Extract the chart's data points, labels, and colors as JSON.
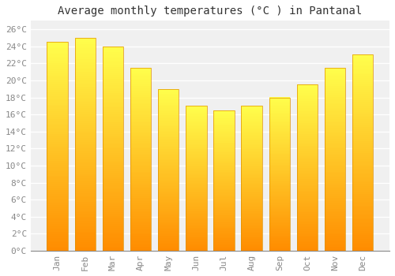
{
  "months": [
    "Jan",
    "Feb",
    "Mar",
    "Apr",
    "May",
    "Jun",
    "Jul",
    "Aug",
    "Sep",
    "Oct",
    "Nov",
    "Dec"
  ],
  "values": [
    24.5,
    25.0,
    24.0,
    21.5,
    19.0,
    17.0,
    16.5,
    17.0,
    18.0,
    19.5,
    21.5,
    23.0
  ],
  "bar_color_top": "#FFCC00",
  "bar_color_bottom": "#FFA500",
  "bar_edge_color": "#E09000",
  "title": "Average monthly temperatures (°C ) in Pantanal",
  "ylim": [
    0,
    27
  ],
  "ytick_step": 2,
  "plot_bg_color": "#f0f0f0",
  "fig_bg_color": "#ffffff",
  "grid_color": "#ffffff",
  "title_fontsize": 10,
  "tick_fontsize": 8,
  "tick_color": "#888888",
  "font_family": "monospace"
}
